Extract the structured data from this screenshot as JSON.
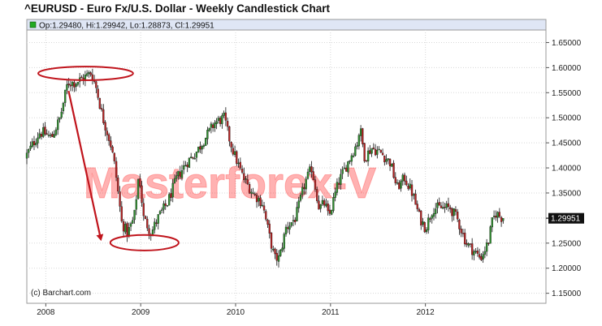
{
  "header": {
    "title": "^EURUSD - Euro Fx/U.S. Dollar - Weekly Candlestick Chart"
  },
  "legend": {
    "text": "Op:1.29480, Hi:1.29942, Lo:1.28873, Cl:1.29951",
    "swatch_color": "#22aa22"
  },
  "watermark": "Masterforex-V",
  "copyright": "(c) Barchart.com",
  "last_price_label": "1.29951",
  "colors": {
    "up": "#2e8b2e",
    "down": "#b22222",
    "wick": "#111111",
    "annotation": "#c0141c",
    "grid": "#d8d8d8"
  },
  "chart_data": {
    "type": "candlestick",
    "interval": "weekly",
    "x_ticks": [
      "2008",
      "2009",
      "2010",
      "2011",
      "2012"
    ],
    "y_ticks": [
      "1.65000",
      "1.60000",
      "1.55000",
      "1.50000",
      "1.45000",
      "1.40000",
      "1.35000",
      "1.30000",
      "1.25000",
      "1.20000",
      "1.15000"
    ],
    "ylim": [
      1.13,
      1.675
    ],
    "xlim": [
      2007.8,
      2013.27
    ],
    "grid": true,
    "last": {
      "open": 1.2948,
      "high": 1.29942,
      "low": 1.28873,
      "close": 1.29951
    },
    "price_path": [
      [
        2007.8,
        1.42
      ],
      [
        2007.95,
        1.47
      ],
      [
        2008.0,
        1.47
      ],
      [
        2008.08,
        1.46
      ],
      [
        2008.17,
        1.5
      ],
      [
        2008.25,
        1.57
      ],
      [
        2008.33,
        1.57
      ],
      [
        2008.42,
        1.58
      ],
      [
        2008.5,
        1.59
      ],
      [
        2008.55,
        1.56
      ],
      [
        2008.62,
        1.5
      ],
      [
        2008.7,
        1.45
      ],
      [
        2008.75,
        1.4
      ],
      [
        2008.82,
        1.29
      ],
      [
        2008.88,
        1.27
      ],
      [
        2008.95,
        1.3
      ],
      [
        2009.0,
        1.39
      ],
      [
        2009.05,
        1.3
      ],
      [
        2009.13,
        1.27
      ],
      [
        2009.2,
        1.3
      ],
      [
        2009.3,
        1.33
      ],
      [
        2009.4,
        1.38
      ],
      [
        2009.5,
        1.41
      ],
      [
        2009.6,
        1.43
      ],
      [
        2009.7,
        1.46
      ],
      [
        2009.8,
        1.49
      ],
      [
        2009.9,
        1.5
      ],
      [
        2009.95,
        1.46
      ],
      [
        2010.0,
        1.43
      ],
      [
        2010.1,
        1.38
      ],
      [
        2010.2,
        1.35
      ],
      [
        2010.3,
        1.33
      ],
      [
        2010.38,
        1.26
      ],
      [
        2010.43,
        1.22
      ],
      [
        2010.48,
        1.22
      ],
      [
        2010.55,
        1.28
      ],
      [
        2010.65,
        1.3
      ],
      [
        2010.75,
        1.37
      ],
      [
        2010.82,
        1.4
      ],
      [
        2010.9,
        1.32
      ],
      [
        2010.96,
        1.33
      ],
      [
        2011.0,
        1.3
      ],
      [
        2011.1,
        1.37
      ],
      [
        2011.2,
        1.41
      ],
      [
        2011.3,
        1.45
      ],
      [
        2011.33,
        1.48
      ],
      [
        2011.38,
        1.42
      ],
      [
        2011.45,
        1.44
      ],
      [
        2011.55,
        1.43
      ],
      [
        2011.65,
        1.41
      ],
      [
        2011.72,
        1.36
      ],
      [
        2011.8,
        1.38
      ],
      [
        2011.88,
        1.35
      ],
      [
        2011.96,
        1.3
      ],
      [
        2012.02,
        1.28
      ],
      [
        2012.1,
        1.32
      ],
      [
        2012.2,
        1.32
      ],
      [
        2012.28,
        1.32
      ],
      [
        2012.35,
        1.3
      ],
      [
        2012.45,
        1.25
      ],
      [
        2012.55,
        1.23
      ],
      [
        2012.6,
        1.22
      ],
      [
        2012.68,
        1.25
      ],
      [
        2012.72,
        1.29
      ],
      [
        2012.76,
        1.31
      ],
      [
        2012.83,
        1.2995
      ]
    ],
    "annotations": [
      {
        "type": "ellipse",
        "center": [
          2008.42,
          1.5885
        ],
        "rx_years": 0.5,
        "ry_price": 0.0135
      },
      {
        "type": "ellipse",
        "center": [
          2009.04,
          1.2508
        ],
        "rx_years": 0.36,
        "ry_price": 0.0155
      },
      {
        "type": "arrow",
        "from": [
          2008.24,
          1.5535
        ],
        "to": [
          2008.58,
          1.2575
        ]
      }
    ]
  }
}
